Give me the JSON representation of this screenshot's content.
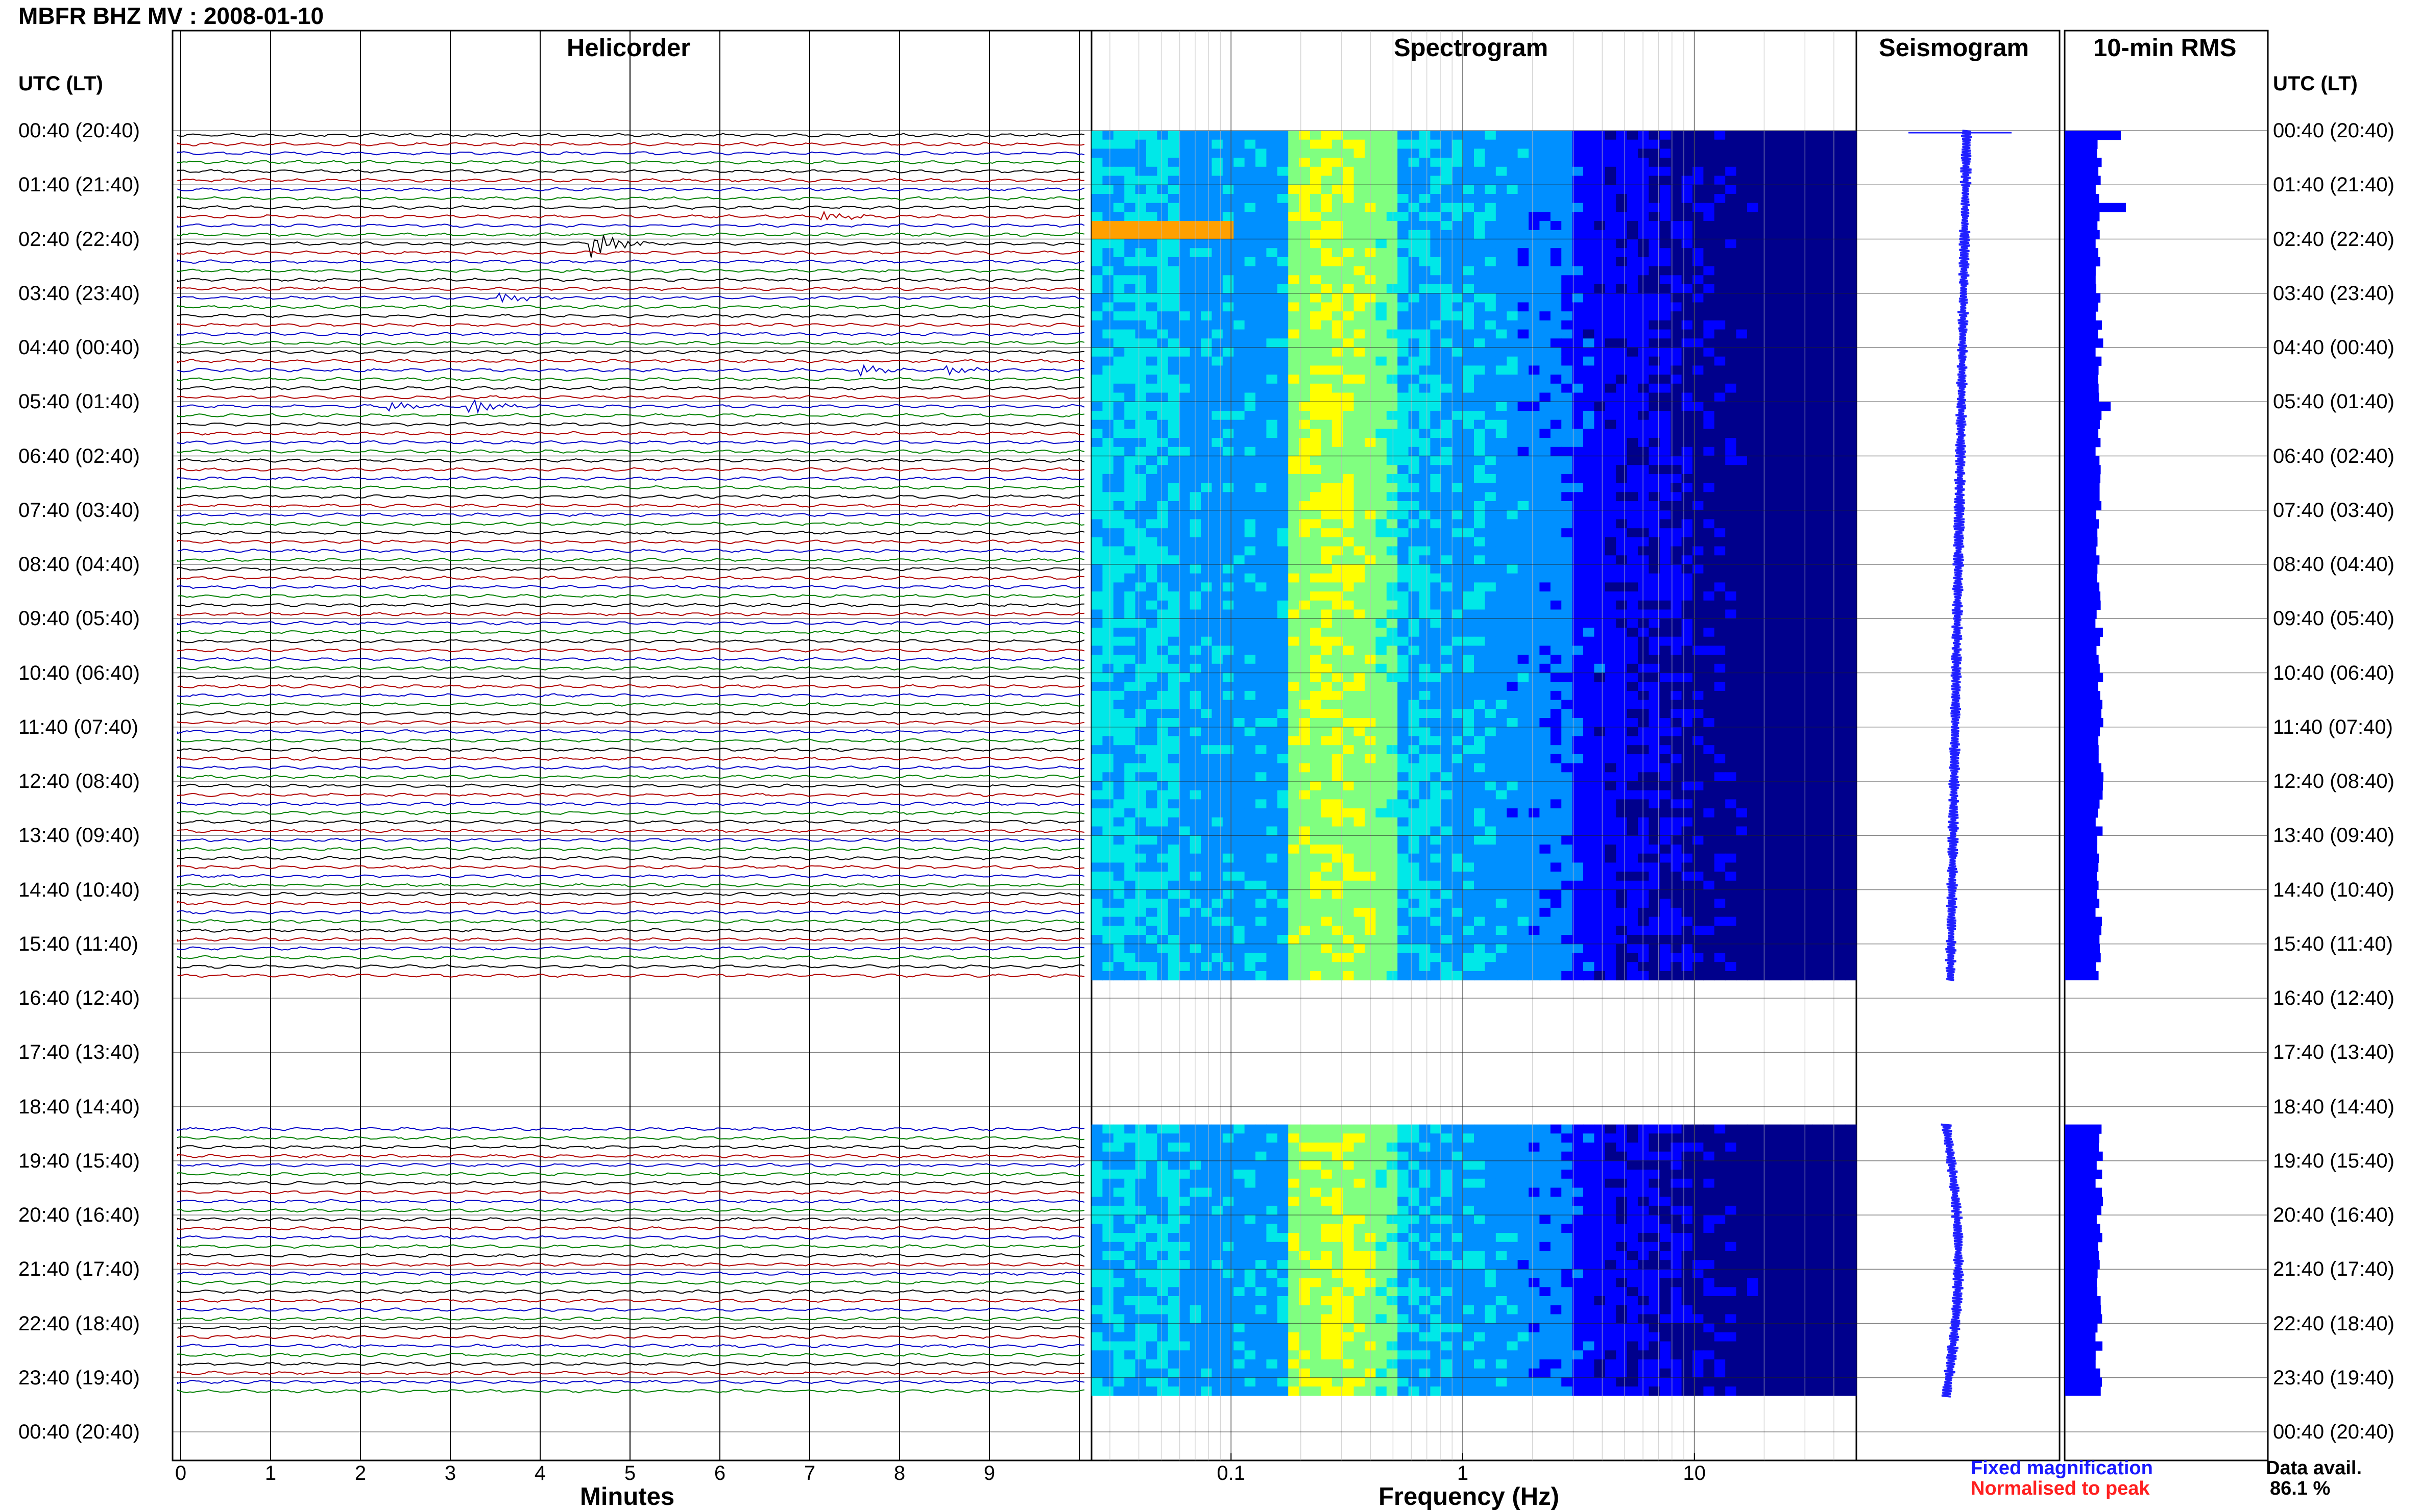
{
  "header": {
    "title": "MBFR BHZ MV : 2008-01-10",
    "utc_label_left": "UTC (LT)",
    "utc_label_right": "UTC (LT)"
  },
  "panels": {
    "helicorder": "Helicorder",
    "spectrogram": "Spectrogram",
    "seismogram": "Seismogram",
    "rms": "10-min RMS"
  },
  "axes": {
    "helicorder_xlabel": "Minutes",
    "spectrogram_xlabel": "Frequency (Hz)",
    "minute_ticks": [
      "0",
      "1",
      "2",
      "3",
      "4",
      "5",
      "6",
      "7",
      "8",
      "9"
    ],
    "freq_ticks": [
      "0.1",
      "1",
      "10"
    ]
  },
  "legend": {
    "fixed": "Fixed magnification",
    "normalised": "Normalised to peak",
    "fixed_color": "#1a1aff",
    "normalised_color": "#ff2020"
  },
  "availability": {
    "label": "Data avail.",
    "value": "86.1 %"
  },
  "chart_data": {
    "type": "heatmap",
    "time_labels": [
      "00:40 (20:40)",
      "01:40 (21:40)",
      "02:40 (22:40)",
      "03:40 (23:40)",
      "04:40 (00:40)",
      "05:40 (01:40)",
      "06:40 (02:40)",
      "07:40 (03:40)",
      "08:40 (04:40)",
      "09:40 (05:40)",
      "10:40 (06:40)",
      "11:40 (07:40)",
      "12:40 (08:40)",
      "13:40 (09:40)",
      "14:40 (10:40)",
      "15:40 (11:40)",
      "16:40 (12:40)",
      "17:40 (13:40)",
      "18:40 (14:40)",
      "19:40 (15:40)",
      "20:40 (16:40)",
      "21:40 (17:40)",
      "22:40 (18:40)",
      "23:40 (19:40)",
      "00:40 (20:40)"
    ],
    "helicorder_colors": [
      "#000000",
      "#b00000",
      "#0000c8",
      "#008000"
    ],
    "spectrogram_colors": [
      "#00008c",
      "#0000ff",
      "#0090ff",
      "#00e8e8",
      "#80ff80",
      "#ffff00",
      "#ffa000"
    ],
    "seismogram_color": "#2020ff",
    "rms_color": "#0000ff",
    "data_segments": [
      {
        "start_hour": 0,
        "end_hour": 15.67
      },
      {
        "start_hour": 18.33,
        "end_hour": 23.33
      }
    ]
  }
}
